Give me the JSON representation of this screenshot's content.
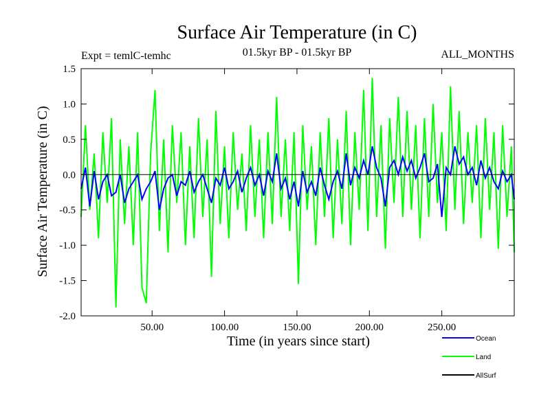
{
  "chart_data": {
    "type": "line",
    "title": "Surface Air Temperature (in C)",
    "subtitle_left": "Expt = temlC-temhc",
    "subtitle_center": "01.5kyr BP - 01.5kyr BP",
    "subtitle_right": "ALL_MONTHS",
    "xlabel": "Time (in years since start)",
    "ylabel": "Surface Air Temperature (in C)",
    "xlim": [
      1,
      300
    ],
    "ylim": [
      -2.0,
      1.5
    ],
    "x_ticks": [
      {
        "value": 50,
        "label": "50.00"
      },
      {
        "value": 100,
        "label": "100.00"
      },
      {
        "value": 150,
        "label": "150.00"
      },
      {
        "value": 200,
        "label": "200.00"
      },
      {
        "value": 250,
        "label": "250.00"
      }
    ],
    "y_ticks": [
      {
        "value": 1.5,
        "label": "1.5"
      },
      {
        "value": 1.0,
        "label": "1.0"
      },
      {
        "value": 0.5,
        "label": "0.5"
      },
      {
        "value": 0.0,
        "label": "0.0"
      },
      {
        "value": -0.5,
        "label": "-0.5"
      },
      {
        "value": -1.0,
        "label": "-1.0"
      },
      {
        "value": -1.5,
        "label": "-1.5"
      },
      {
        "value": -2.0,
        "label": "-2.0"
      }
    ],
    "series": [
      {
        "name": "Land",
        "color": "#00ff00",
        "x": [
          1,
          4,
          7,
          10,
          13,
          16,
          19,
          22,
          25,
          28,
          31,
          34,
          37,
          40,
          43,
          46,
          49,
          52,
          55,
          58,
          61,
          64,
          67,
          70,
          73,
          76,
          79,
          82,
          85,
          88,
          91,
          94,
          97,
          100,
          103,
          106,
          109,
          112,
          115,
          118,
          121,
          124,
          127,
          130,
          133,
          136,
          139,
          142,
          145,
          148,
          151,
          154,
          157,
          160,
          163,
          166,
          169,
          172,
          175,
          178,
          181,
          184,
          187,
          190,
          193,
          196,
          199,
          202,
          205,
          208,
          211,
          214,
          217,
          220,
          223,
          226,
          229,
          232,
          235,
          238,
          241,
          244,
          247,
          250,
          253,
          256,
          259,
          262,
          265,
          268,
          271,
          274,
          277,
          280,
          283,
          286,
          289,
          292,
          295,
          298,
          300
        ],
        "values": [
          -0.6,
          0.7,
          -0.5,
          0.3,
          -0.9,
          0.6,
          -0.4,
          0.8,
          -1.88,
          0.5,
          -0.7,
          0.4,
          -1.0,
          0.6,
          -1.6,
          -1.82,
          0.3,
          1.2,
          -0.8,
          0.5,
          -1.1,
          0.7,
          -0.4,
          0.6,
          -1.0,
          0.4,
          -0.9,
          0.8,
          -0.6,
          0.5,
          -1.45,
          0.9,
          -0.7,
          0.4,
          -0.9,
          0.6,
          -0.5,
          0.3,
          -0.8,
          0.7,
          -0.6,
          0.5,
          -0.9,
          0.6,
          -0.7,
          1.1,
          -0.6,
          0.5,
          -0.8,
          0.6,
          -1.55,
          0.7,
          -0.5,
          0.4,
          -1.0,
          0.6,
          -0.6,
          0.8,
          -0.9,
          0.5,
          -0.7,
          0.9,
          -1.0,
          0.6,
          -0.5,
          1.2,
          -0.8,
          1.37,
          -0.6,
          0.7,
          -1.05,
          0.8,
          -0.4,
          1.1,
          -0.6,
          0.9,
          -0.5,
          0.7,
          -0.9,
          0.8,
          -0.6,
          1.0,
          -0.4,
          0.6,
          -0.8,
          1.25,
          -0.5,
          0.9,
          -0.7,
          0.6,
          -0.4,
          0.7,
          -0.9,
          0.8,
          -0.5,
          0.6,
          -1.05,
          0.7,
          -0.6,
          0.4,
          -1.1
        ]
      },
      {
        "name": "Ocean",
        "color": "#0000ff",
        "x": [
          1,
          4,
          7,
          10,
          13,
          16,
          19,
          22,
          25,
          28,
          31,
          34,
          37,
          40,
          43,
          46,
          49,
          52,
          55,
          58,
          61,
          64,
          67,
          70,
          73,
          76,
          79,
          82,
          85,
          88,
          91,
          94,
          97,
          100,
          103,
          106,
          109,
          112,
          115,
          118,
          121,
          124,
          127,
          130,
          133,
          136,
          139,
          142,
          145,
          148,
          151,
          154,
          157,
          160,
          163,
          166,
          169,
          172,
          175,
          178,
          181,
          184,
          187,
          190,
          193,
          196,
          199,
          202,
          205,
          208,
          211,
          214,
          217,
          220,
          223,
          226,
          229,
          232,
          235,
          238,
          241,
          244,
          247,
          250,
          253,
          256,
          259,
          262,
          265,
          268,
          271,
          274,
          277,
          280,
          283,
          286,
          289,
          292,
          295,
          298,
          300
        ],
        "values": [
          -0.2,
          0.1,
          -0.45,
          0.05,
          -0.35,
          -0.1,
          0.0,
          -0.3,
          -0.25,
          0.0,
          -0.4,
          -0.2,
          -0.1,
          0.0,
          -0.35,
          -0.2,
          -0.1,
          0.05,
          -0.5,
          -0.2,
          -0.05,
          0.0,
          -0.3,
          -0.1,
          -0.15,
          0.05,
          -0.25,
          -0.1,
          0.0,
          -0.2,
          -0.4,
          -0.05,
          -0.15,
          0.1,
          -0.2,
          -0.1,
          0.05,
          -0.25,
          -0.05,
          0.1,
          -0.15,
          0.0,
          -0.3,
          0.05,
          -0.1,
          0.3,
          -0.2,
          -0.05,
          -0.35,
          -0.1,
          -0.45,
          0.05,
          -0.25,
          -0.1,
          -0.3,
          0.1,
          -0.15,
          -0.35,
          -0.1,
          0.05,
          -0.2,
          0.3,
          -0.15,
          0.1,
          -0.05,
          0.2,
          0.0,
          0.4,
          0.1,
          -0.05,
          -0.45,
          0.1,
          0.2,
          0.0,
          0.25,
          0.05,
          0.2,
          -0.05,
          0.1,
          0.3,
          -0.1,
          -0.05,
          0.15,
          -0.6,
          0.1,
          0.0,
          0.4,
          0.15,
          0.25,
          0.0,
          0.1,
          -0.15,
          0.2,
          -0.05,
          0.1,
          -0.1,
          -0.2,
          0.05,
          -0.1,
          0.0,
          -0.35
        ]
      },
      {
        "name": "AllSurf",
        "color": "#000000",
        "x": [
          1,
          300
        ],
        "values": [
          0,
          0
        ]
      }
    ],
    "legend_position": "bottom-right"
  }
}
